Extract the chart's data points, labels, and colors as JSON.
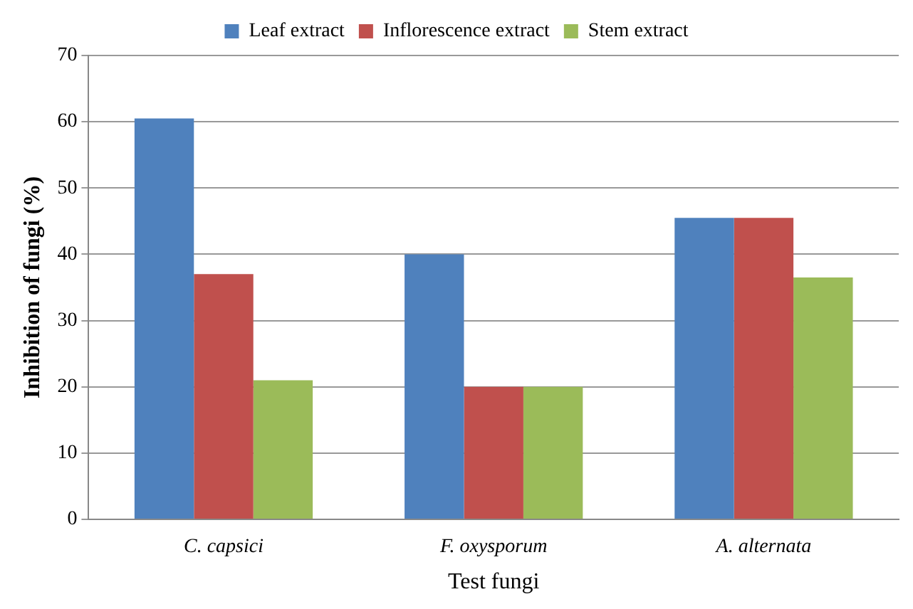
{
  "chart_data": {
    "type": "bar",
    "xlabel": "Test fungi",
    "ylabel": "Inhibition of fungi (%)",
    "categories": [
      "C. capsici",
      "F. oxysporum",
      "A. alternata"
    ],
    "series": [
      {
        "name": "Leaf extract",
        "color": "#4f81bd",
        "values": [
          60.5,
          40,
          45.5
        ]
      },
      {
        "name": "Inflorescence extract",
        "color": "#c0504d",
        "values": [
          37,
          20,
          45.5
        ]
      },
      {
        "name": "Stem extract",
        "color": "#9bbb59",
        "values": [
          21,
          20,
          36.5
        ]
      }
    ],
    "ylim": [
      0,
      70
    ],
    "yticks": [
      0,
      10,
      20,
      30,
      40,
      50,
      60,
      70
    ],
    "grid": "y",
    "legend": "top"
  }
}
